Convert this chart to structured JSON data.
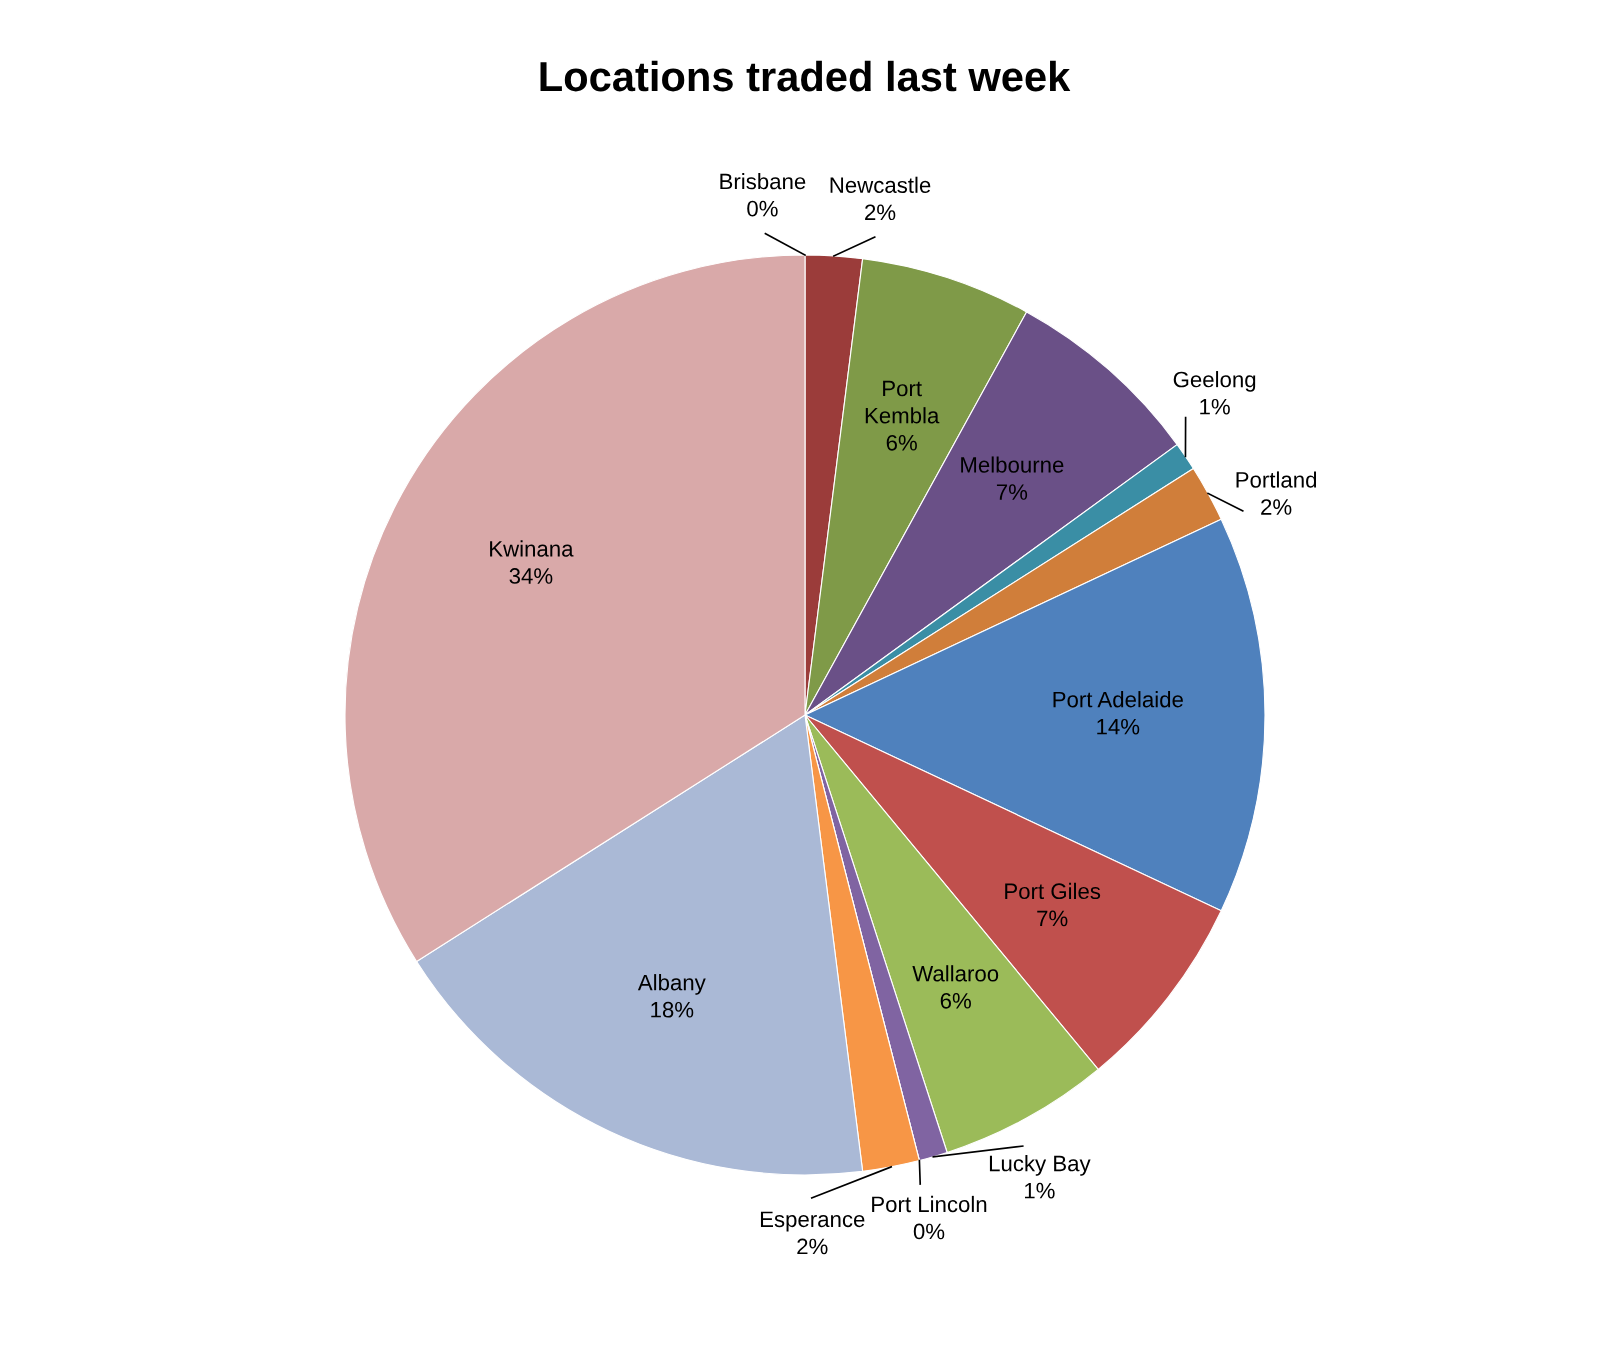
{
  "chart_data": {
    "type": "pie",
    "title": "Locations traded last week",
    "categories": [
      "Brisbane",
      "Newcastle",
      "Port Kembla",
      "Melbourne",
      "Geelong",
      "Portland",
      "Port Adelaide",
      "Port Giles",
      "Wallaroo",
      "Lucky Bay",
      "Port Lincoln",
      "Esperance",
      "Albany",
      "Kwinana"
    ],
    "values": [
      0,
      2,
      6,
      7,
      1,
      2,
      14,
      7,
      6,
      1,
      0,
      2,
      18,
      34
    ],
    "value_labels": [
      "0%",
      "2%",
      "6%",
      "7%",
      "1%",
      "2%",
      "14%",
      "7%",
      "6%",
      "1%",
      "0%",
      "2%",
      "18%",
      "34%"
    ],
    "colors": [
      "#4f81bd",
      "#9b3c3a",
      "#7f9a48",
      "#6a5087",
      "#3a8ea5",
      "#d07e3a",
      "#4f81bd",
      "#c0504d",
      "#9bbb59",
      "#8064a2",
      "#4bacc6",
      "#f79646",
      "#aab9d6",
      "#d9a9a9"
    ]
  }
}
